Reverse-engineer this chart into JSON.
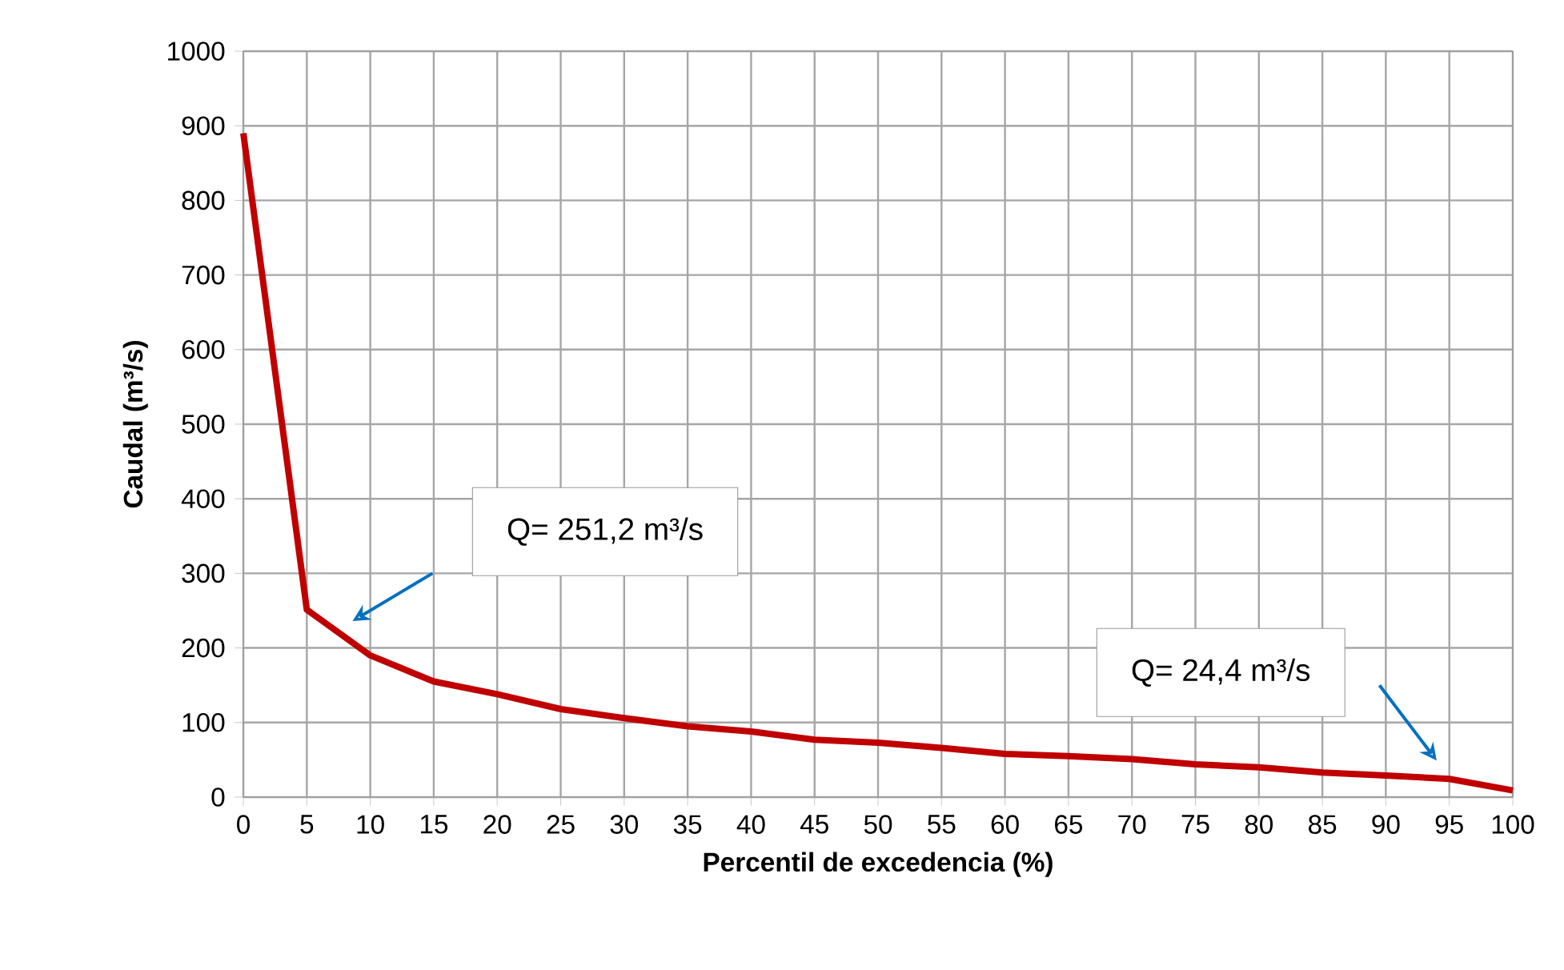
{
  "chart_data": {
    "type": "line",
    "xlabel": "Percentil de excedencia (%)",
    "ylabel": "Caudal (m³/s)",
    "x": [
      0,
      5,
      10,
      15,
      20,
      25,
      30,
      35,
      40,
      45,
      50,
      55,
      60,
      65,
      70,
      75,
      80,
      85,
      90,
      95,
      100
    ],
    "series": [
      {
        "color": "#c00000",
        "values": [
          890,
          251.2,
          190,
          155,
          138,
          118,
          106,
          95,
          88,
          77,
          73,
          66,
          58,
          55,
          51,
          44,
          40,
          33,
          29,
          24.4,
          9
        ]
      }
    ],
    "xlim": [
      0,
      100
    ],
    "ylim": [
      0,
      1000
    ],
    "xticks": [
      0,
      5,
      10,
      15,
      20,
      25,
      30,
      35,
      40,
      45,
      50,
      55,
      60,
      65,
      70,
      75,
      80,
      85,
      90,
      95,
      100
    ],
    "yticks": [
      0,
      100,
      200,
      300,
      400,
      500,
      600,
      700,
      800,
      900,
      1000
    ],
    "grid": true,
    "marker": "none",
    "line_style": "solid",
    "annotations": [
      "Q= 251,2 m³/s",
      "Q= 24,4 m³/s"
    ]
  }
}
